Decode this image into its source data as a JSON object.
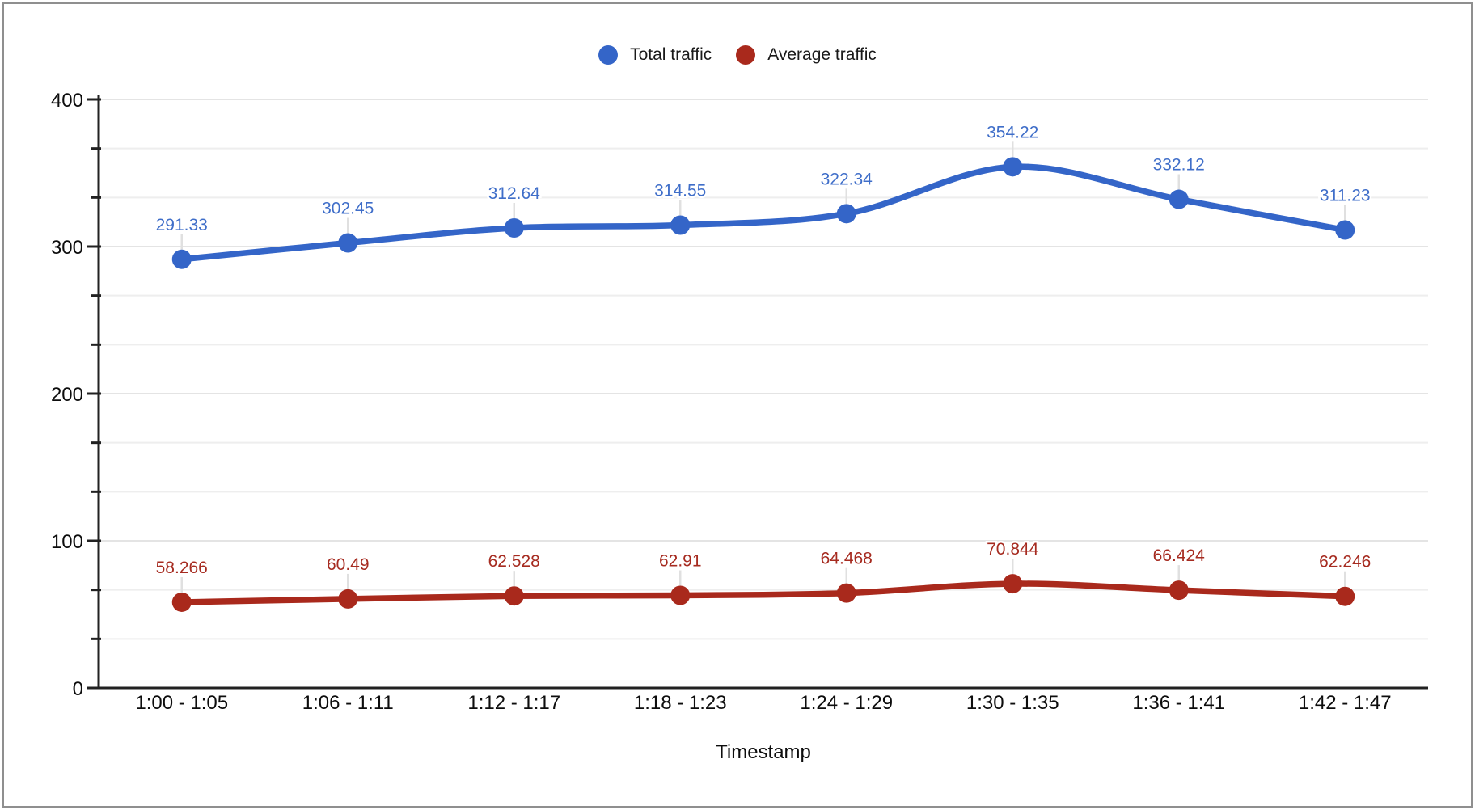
{
  "chart_data": {
    "type": "line",
    "title": "",
    "xlabel": "Timestamp",
    "ylabel": "",
    "legend_position": "top",
    "grid": true,
    "smooth_lines": true,
    "categories": [
      "1:00 - 1:05",
      "1:06 - 1:11",
      "1:12 - 1:17",
      "1:18 - 1:23",
      "1:24 - 1:29",
      "1:30 - 1:35",
      "1:36 - 1:41",
      "1:42 - 1:47"
    ],
    "series": [
      {
        "name": "Total traffic",
        "color": "#3465c8",
        "label_color": "#3f6ec9",
        "values": [
          291.33,
          302.45,
          312.64,
          314.55,
          322.34,
          354.22,
          332.12,
          311.23
        ],
        "labels": [
          "291.33",
          "302.45",
          "312.64",
          "314.55",
          "322.34",
          "354.22",
          "332.12",
          "311.23"
        ]
      },
      {
        "name": "Average traffic",
        "color": "#a9291c",
        "label_color": "#a62b20",
        "values": [
          58.266,
          60.49,
          62.528,
          62.91,
          64.468,
          70.844,
          66.424,
          62.246
        ],
        "labels": [
          "58.266",
          "60.49",
          "62.528",
          "62.91",
          "64.468",
          "70.844",
          "66.424",
          "62.246"
        ]
      }
    ],
    "yaxis": {
      "min": 0,
      "max": 400,
      "tick_labels": [
        "0",
        "100",
        "200",
        "300",
        "400"
      ],
      "minor_gridlines_per_major": 2
    }
  },
  "colors": {
    "axis": "#212121",
    "tick_text": "#0d0d0d",
    "grid_major": "#e4e4e4",
    "grid_minor": "#eeeeee",
    "leader_line": "#e0e0e0",
    "border": "#8f8f8f",
    "background": "#ffffff"
  }
}
